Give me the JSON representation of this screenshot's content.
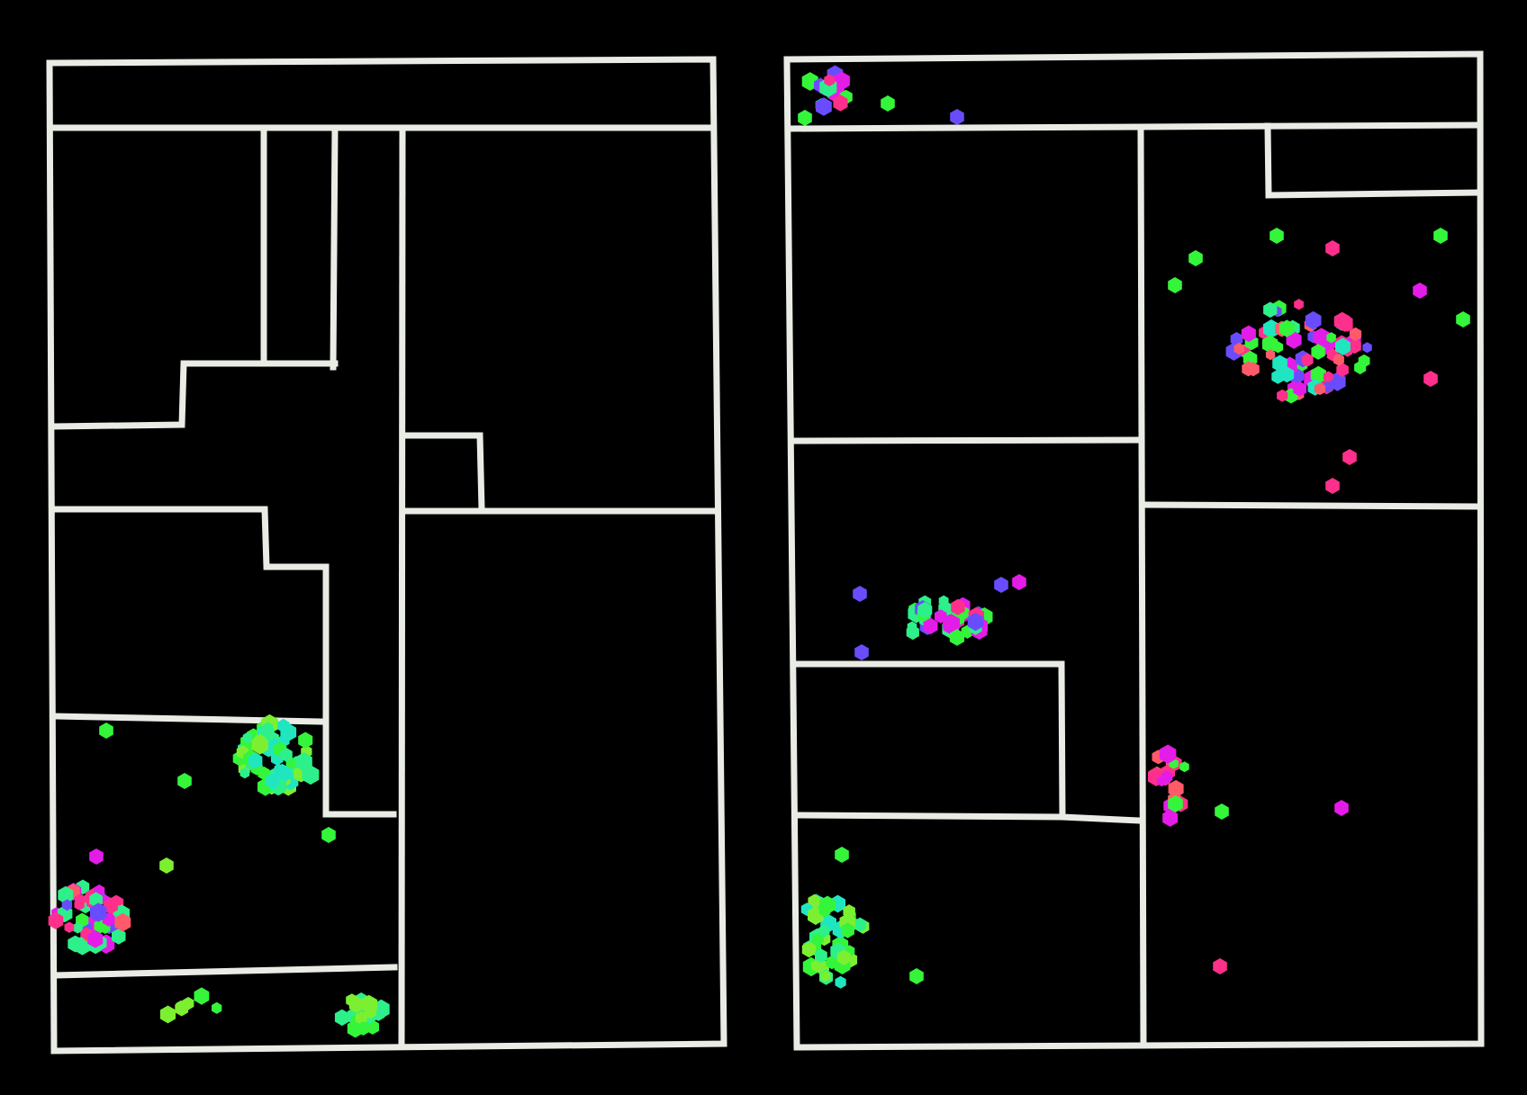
{
  "figure": {
    "background": "#000000",
    "wall_color": "#e8ece4",
    "panels": [
      {
        "name": "left-floor-plan"
      },
      {
        "name": "right-floor-plan"
      }
    ],
    "marker_shape": "hexagon",
    "marker_colors": [
      "#34f53a",
      "#2ef08a",
      "#20e6c0",
      "#7cf030",
      "#ff2f8c",
      "#e41ce8",
      "#ff5a6a",
      "#6a4cff",
      "#ff7f50"
    ]
  }
}
